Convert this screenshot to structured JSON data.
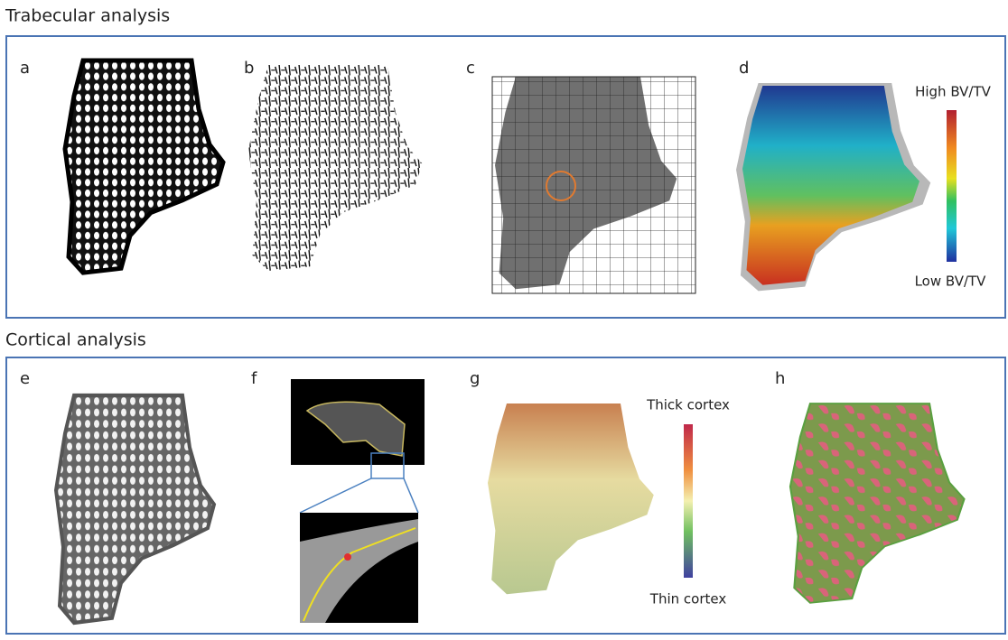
{
  "sections": [
    {
      "title": "Trabecular analysis",
      "panels": [
        "a",
        "b",
        "c",
        "d"
      ],
      "scale": {
        "high": "High BV/TV",
        "low": "Low BV/TV"
      }
    },
    {
      "title": "Cortical analysis",
      "panels": [
        "e",
        "f",
        "g",
        "h"
      ],
      "scale": {
        "high": "Thick cortex",
        "low": "Thin cortex"
      }
    }
  ]
}
